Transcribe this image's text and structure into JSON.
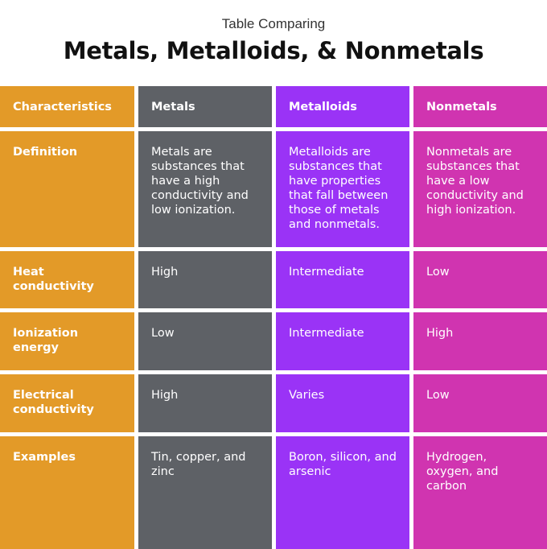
{
  "subtitle": "Table Comparing",
  "title": "Metals, Metalloids, & Nonmetals",
  "colors": {
    "characteristics": "#e39a28",
    "metals": "#5e6166",
    "metalloids": "#9a33f6",
    "nonmetals": "#d034b0"
  },
  "table": {
    "headers": [
      "Characteristics",
      "Metals",
      "Metalloids",
      "Nonmetals"
    ],
    "rows": [
      {
        "label": "Definition",
        "metals": "Metals are substances that have a high conductivity and low ionization.",
        "metalloids": "Metalloids are substances that have properties that fall between those of metals and nonmetals.",
        "nonmetals": "Nonmetals are substances that have a low conductivity and high ionization."
      },
      {
        "label": "Heat conductivity",
        "metals": "High",
        "metalloids": "Intermediate",
        "nonmetals": "Low"
      },
      {
        "label": "Ionization energy",
        "metals": "Low",
        "metalloids": "Intermediate",
        "nonmetals": "High"
      },
      {
        "label": "Electrical conductivity",
        "metals": "High",
        "metalloids": "Varies",
        "nonmetals": "Low"
      },
      {
        "label": "Examples",
        "metals": "Tin, copper,  and zinc",
        "metalloids": "Boron, silicon, and arsenic",
        "nonmetals": "Hydrogen, oxygen, and carbon"
      }
    ]
  }
}
